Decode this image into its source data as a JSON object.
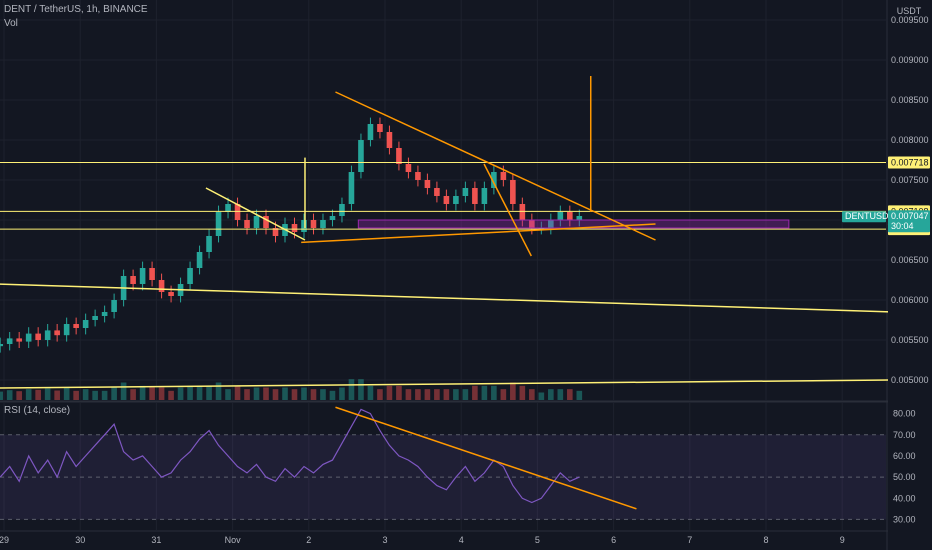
{
  "header": {
    "symbol_line": "DENT / TetherUS, 1h, BINANCE",
    "vol_label": "Vol",
    "currency": "USDT"
  },
  "rsi_header": {
    "label": "RSI (14, close)"
  },
  "price_tags": {
    "level_upper": "0.007718",
    "level_mid": "0.007108",
    "symbol_tag": "DENTUSDT",
    "current_price": "0.007047",
    "countdown": "30:04",
    "level_lower": "0.006886"
  },
  "colors": {
    "background": "#131722",
    "grid": "#1e222d",
    "up": "#26a69a",
    "down": "#ef5350",
    "yellow_lines": "#fff176",
    "orange_lines": "#ff9800",
    "rsi_line": "#7e57c2",
    "zone_purple": "#9c27b0"
  },
  "chart_data": [
    {
      "type": "candlestick",
      "title": "DENT / TetherUS, 1h, BINANCE",
      "x_tick_labels": [
        "29",
        "30",
        "31",
        "Nov",
        "2",
        "3",
        "4",
        "5",
        "6",
        "7",
        "8",
        "9"
      ],
      "y_tick_labels": [
        "0.009500",
        "0.009000",
        "0.008500",
        "0.008000",
        "0.007500",
        "0.007000",
        "0.006500",
        "0.006000",
        "0.005500",
        "0.005000"
      ],
      "ylim": [
        0.00475,
        0.00975
      ],
      "y_ticks": [
        0.0095,
        0.009,
        0.0085,
        0.008,
        0.0075,
        0.007,
        0.0065,
        0.006,
        0.0055,
        0.005
      ],
      "x_ticks_day": [
        0,
        1,
        2,
        3,
        4,
        5,
        6,
        7,
        8,
        9,
        10,
        11
      ],
      "candles_close": [
        0.00545,
        0.00552,
        0.00548,
        0.00558,
        0.0055,
        0.00562,
        0.00556,
        0.0057,
        0.00565,
        0.00575,
        0.0058,
        0.00585,
        0.006,
        0.0063,
        0.0062,
        0.0064,
        0.00625,
        0.0061,
        0.00605,
        0.0062,
        0.0064,
        0.0066,
        0.0068,
        0.0071,
        0.0072,
        0.007,
        0.0069,
        0.00705,
        0.0069,
        0.0068,
        0.00695,
        0.00685,
        0.007,
        0.0069,
        0.007,
        0.00705,
        0.0072,
        0.0076,
        0.008,
        0.0082,
        0.0081,
        0.0079,
        0.0077,
        0.0076,
        0.0075,
        0.0074,
        0.0073,
        0.0072,
        0.0073,
        0.0074,
        0.0072,
        0.0074,
        0.0076,
        0.0075,
        0.0072,
        0.007,
        0.0069,
        0.0069,
        0.007,
        0.0071,
        0.007,
        0.00705
      ],
      "annotations": [
        {
          "kind": "horizontal",
          "value": 0.007718
        },
        {
          "kind": "horizontal",
          "value": 0.007108
        },
        {
          "kind": "horizontal",
          "value": 0.006886
        },
        {
          "kind": "zone",
          "range": [
            0.0069,
            0.007
          ]
        },
        {
          "kind": "trendline",
          "points": [
            [
              -0.1,
              0.0062
            ],
            [
              11.7,
              0.00585
            ]
          ]
        },
        {
          "kind": "trendline",
          "points": [
            [
              -0.1,
              0.0049
            ],
            [
              11.7,
              0.005
            ]
          ]
        },
        {
          "kind": "trendline",
          "points": [
            [
              2.65,
              0.0074
            ],
            [
              3.95,
              0.00675
            ]
          ]
        },
        {
          "kind": "trendline",
          "points": [
            [
              3.9,
              0.00672
            ],
            [
              8.55,
              0.00695
            ]
          ]
        },
        {
          "kind": "trendline",
          "points": [
            [
              4.35,
              0.0086
            ],
            [
              8.55,
              0.00675
            ]
          ]
        },
        {
          "kind": "trendline",
          "points": [
            [
              6.3,
              0.0077
            ],
            [
              6.92,
              0.00655
            ]
          ]
        },
        {
          "kind": "vertical",
          "x": 3.95,
          "range": [
            0.0069,
            0.00778
          ]
        },
        {
          "kind": "vertical",
          "x": 7.7,
          "range": [
            0.0071,
            0.0088
          ]
        }
      ]
    },
    {
      "type": "line",
      "title": "RSI (14, close)",
      "y_tick_labels": [
        "80.00",
        "70.00",
        "60.00",
        "50.00",
        "40.00",
        "30.00"
      ],
      "ylim": [
        25,
        85
      ],
      "y_ticks": [
        80,
        70,
        60,
        50,
        40,
        30
      ],
      "band": [
        30,
        70
      ],
      "values": [
        50,
        55,
        48,
        60,
        52,
        58,
        50,
        62,
        55,
        60,
        65,
        70,
        75,
        62,
        58,
        60,
        55,
        50,
        52,
        58,
        62,
        68,
        72,
        65,
        60,
        55,
        52,
        56,
        50,
        48,
        54,
        50,
        55,
        52,
        56,
        58,
        66,
        74,
        82,
        80,
        72,
        65,
        60,
        58,
        55,
        50,
        46,
        44,
        50,
        55,
        48,
        52,
        58,
        55,
        46,
        40,
        38,
        40,
        46,
        52,
        48,
        50
      ],
      "annotations": [
        {
          "kind": "trendline",
          "points": [
            [
              4.35,
              83
            ],
            [
              8.3,
              35
            ]
          ]
        }
      ]
    }
  ]
}
